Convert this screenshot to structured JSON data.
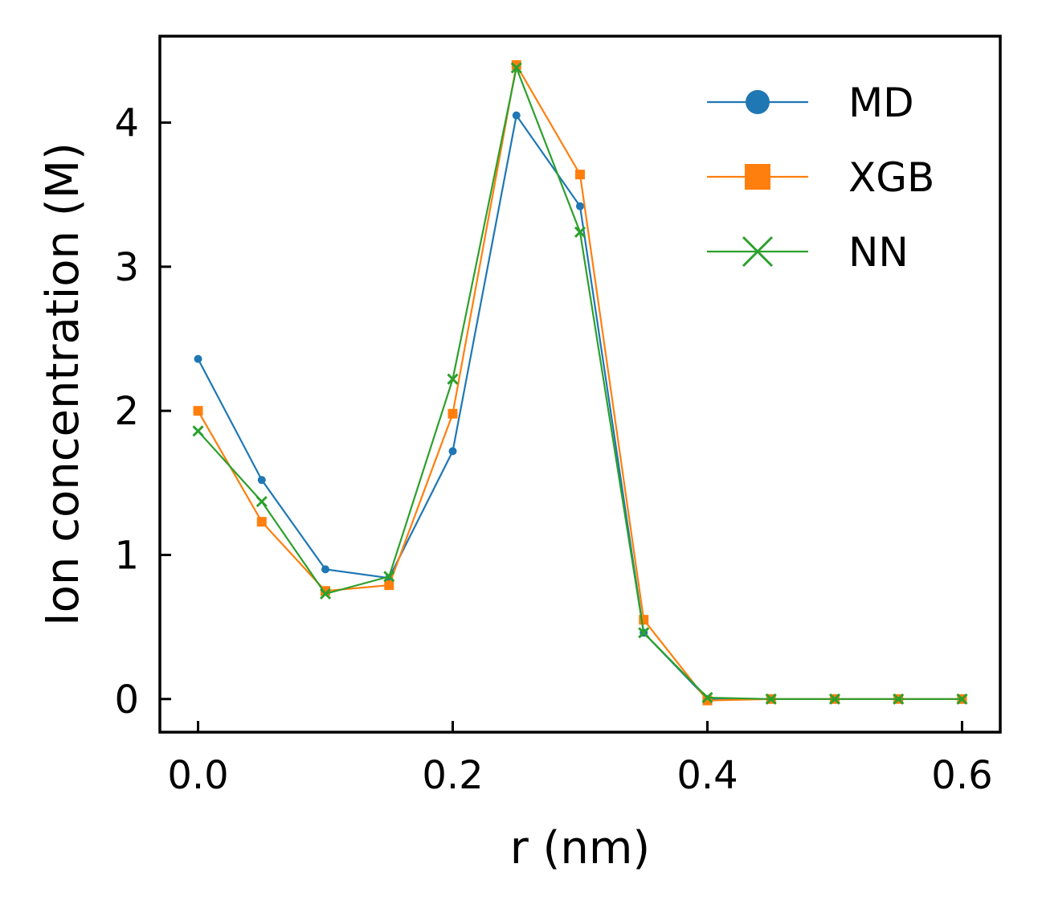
{
  "chart_data": {
    "type": "line",
    "title": "",
    "xlabel": "r (nm)",
    "ylabel": "Ion concentration (M)",
    "xlim": [
      -0.03,
      0.63
    ],
    "ylim": [
      -0.23,
      4.6
    ],
    "xticks": [
      0.0,
      0.2,
      0.4,
      0.6
    ],
    "xtick_labels": [
      "0.0",
      "0.2",
      "0.4",
      "0.6"
    ],
    "yticks": [
      0,
      1,
      2,
      3,
      4
    ],
    "ytick_labels": [
      "0",
      "1",
      "2",
      "3",
      "4"
    ],
    "x": [
      0.0,
      0.05,
      0.1,
      0.15,
      0.2,
      0.25,
      0.3,
      0.35,
      0.4,
      0.45,
      0.5,
      0.55,
      0.6
    ],
    "series": [
      {
        "name": "MD",
        "color": "#1f77b4",
        "marker": "circle",
        "values": [
          2.36,
          1.52,
          0.9,
          0.84,
          1.72,
          4.05,
          3.42,
          0.46,
          0.0,
          0.0,
          0.0,
          0.0,
          0.0
        ]
      },
      {
        "name": "XGB",
        "color": "#ff7f0e",
        "marker": "square",
        "values": [
          2.0,
          1.23,
          0.75,
          0.79,
          1.98,
          4.4,
          3.64,
          0.55,
          -0.01,
          0.0,
          0.0,
          0.0,
          0.0
        ]
      },
      {
        "name": "NN",
        "color": "#2ca02c",
        "marker": "x",
        "values": [
          1.86,
          1.37,
          0.73,
          0.85,
          2.22,
          4.38,
          3.24,
          0.46,
          0.01,
          0.0,
          0.0,
          0.0,
          0.0
        ]
      }
    ],
    "grid": false,
    "legend_position": "top-right"
  }
}
